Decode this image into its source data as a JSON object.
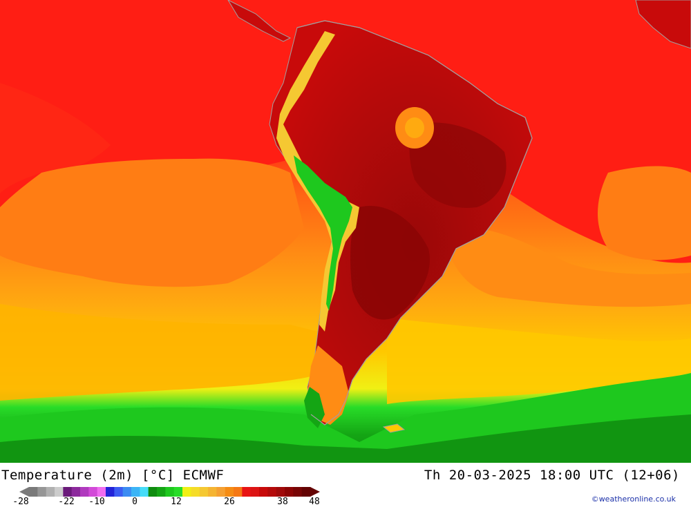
{
  "title": "Temperature (2m) [°C] ECMWF",
  "datetime": "Th 20-03-2025 18:00 UTC (12+06)",
  "credit": "©weatheronline.co.uk",
  "legend": {
    "ticks": [
      "-28",
      "-22",
      "-10",
      "0",
      "12",
      "26",
      "38",
      "48"
    ],
    "colors": [
      "#7a7a7a",
      "#969696",
      "#b0b0b0",
      "#cccccc",
      "#6a1a7a",
      "#8c2a9c",
      "#b03abe",
      "#d24ad8",
      "#ef6cf0",
      "#2323d8",
      "#3c5cf2",
      "#3c8cf2",
      "#3cb4f6",
      "#46dcf8",
      "#0f8c0f",
      "#14a514",
      "#1ec81e",
      "#28dc28",
      "#f0f014",
      "#f5dc28",
      "#f5c832",
      "#f5b432",
      "#f5a032",
      "#f58c14",
      "#f57814",
      "#e81414",
      "#dc1414",
      "#c80a0a",
      "#b40a0a",
      "#a00a0a",
      "#8c0505",
      "#780505",
      "#640303"
    ]
  },
  "map": {
    "region": "South America",
    "palette": {
      "sea_warm": "#ff1e14",
      "sea_mid": "#ff7d14",
      "sea_cool": "#ffb400",
      "sea_cold": "#ffe600",
      "southern_green": "#1ec81e",
      "land_hot": "#b40a0a",
      "land_very_hot": "#8c0505",
      "andes_cool": "#1ec81e",
      "coastline": "#a0a0a0"
    }
  }
}
